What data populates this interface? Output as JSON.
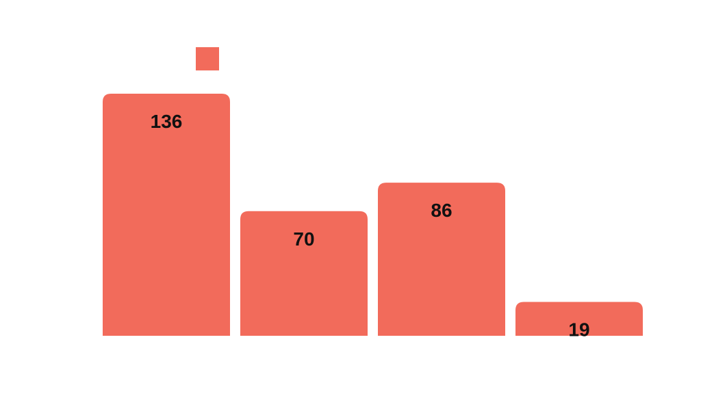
{
  "chart_data": {
    "type": "bar",
    "categories": [
      "",
      "",
      "",
      ""
    ],
    "values": [
      136,
      70,
      86,
      19
    ],
    "labels": [
      "136",
      "70",
      "86",
      "19"
    ],
    "title": "",
    "xlabel": "",
    "ylabel": "",
    "ylim": [
      0,
      136
    ],
    "grid": false,
    "legend": {
      "position": "top-left",
      "entries": [
        ""
      ]
    },
    "colors": {
      "bar": "#F26B5B",
      "label": "#111111"
    }
  }
}
